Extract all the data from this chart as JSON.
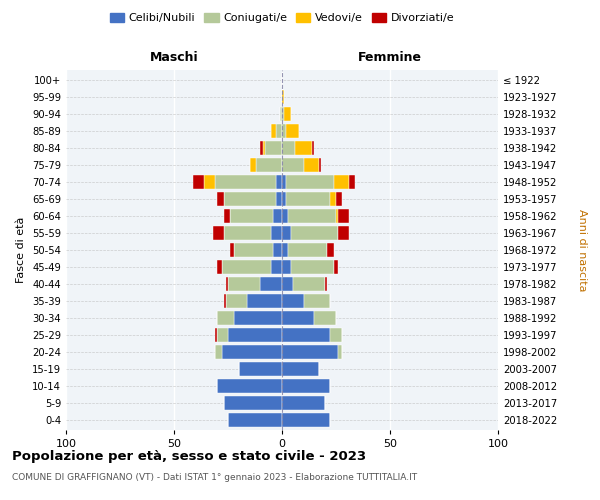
{
  "age_groups": [
    "0-4",
    "5-9",
    "10-14",
    "15-19",
    "20-24",
    "25-29",
    "30-34",
    "35-39",
    "40-44",
    "45-49",
    "50-54",
    "55-59",
    "60-64",
    "65-69",
    "70-74",
    "75-79",
    "80-84",
    "85-89",
    "90-94",
    "95-99",
    "100+"
  ],
  "birth_years": [
    "2018-2022",
    "2013-2017",
    "2008-2012",
    "2003-2007",
    "1998-2002",
    "1993-1997",
    "1988-1992",
    "1983-1987",
    "1978-1982",
    "1973-1977",
    "1968-1972",
    "1963-1967",
    "1958-1962",
    "1953-1957",
    "1948-1952",
    "1943-1947",
    "1938-1942",
    "1933-1937",
    "1928-1932",
    "1923-1927",
    "≤ 1922"
  ],
  "males": {
    "celibi": [
      25,
      27,
      30,
      20,
      28,
      25,
      22,
      16,
      10,
      5,
      4,
      5,
      4,
      3,
      3,
      0,
      0,
      0,
      0,
      0,
      0
    ],
    "coniugati": [
      0,
      0,
      0,
      0,
      3,
      5,
      8,
      10,
      15,
      23,
      18,
      22,
      20,
      24,
      28,
      12,
      8,
      3,
      1,
      0,
      0
    ],
    "vedovi": [
      0,
      0,
      0,
      0,
      0,
      0,
      0,
      0,
      0,
      0,
      0,
      0,
      0,
      0,
      5,
      3,
      1,
      2,
      0,
      0,
      0
    ],
    "divorziati": [
      0,
      0,
      0,
      0,
      0,
      1,
      0,
      1,
      1,
      2,
      2,
      5,
      3,
      3,
      5,
      0,
      1,
      0,
      0,
      0,
      0
    ]
  },
  "females": {
    "nubili": [
      22,
      20,
      22,
      17,
      26,
      22,
      15,
      10,
      5,
      4,
      3,
      4,
      3,
      2,
      2,
      0,
      0,
      0,
      0,
      0,
      0
    ],
    "coniugate": [
      0,
      0,
      0,
      0,
      2,
      6,
      10,
      12,
      15,
      20,
      18,
      22,
      22,
      20,
      22,
      10,
      6,
      2,
      1,
      0,
      0
    ],
    "vedove": [
      0,
      0,
      0,
      0,
      0,
      0,
      0,
      0,
      0,
      0,
      0,
      0,
      1,
      3,
      7,
      7,
      8,
      6,
      3,
      1,
      0
    ],
    "divorziate": [
      0,
      0,
      0,
      0,
      0,
      0,
      0,
      0,
      1,
      2,
      3,
      5,
      5,
      3,
      3,
      1,
      1,
      0,
      0,
      0,
      0
    ]
  },
  "colors": {
    "celibi": "#4472c4",
    "coniugati": "#b5c99a",
    "vedovi": "#ffc000",
    "divorziati": "#c00000"
  },
  "xlim": 100,
  "title": "Popolazione per età, sesso e stato civile - 2023",
  "subtitle": "COMUNE DI GRAFFIGNANO (VT) - Dati ISTAT 1° gennaio 2023 - Elaborazione TUTTITALIA.IT",
  "xlabel_left": "Maschi",
  "xlabel_right": "Femmine",
  "ylabel_left": "Fasce di età",
  "ylabel_right": "Anni di nascita",
  "legend_labels": [
    "Celibi/Nubili",
    "Coniugati/e",
    "Vedovi/e",
    "Divorziati/e"
  ],
  "bg_color": "#f0f4f8",
  "bar_height": 0.85,
  "xticks": [
    -100,
    -50,
    0,
    50,
    100
  ]
}
